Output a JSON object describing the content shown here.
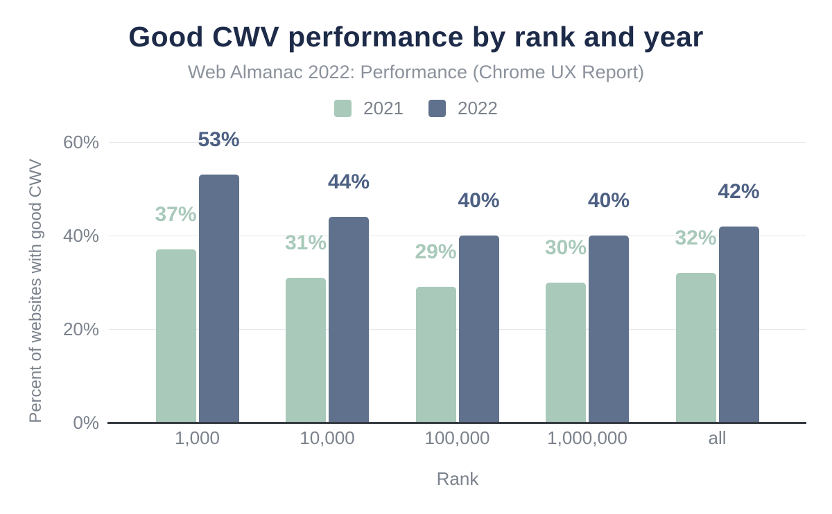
{
  "header": {
    "title": "Good CWV performance by rank and year",
    "subtitle": "Web Almanac 2022: Performance (Chrome UX Report)"
  },
  "legend": [
    {
      "label": "2021",
      "color": "#a9c9ba"
    },
    {
      "label": "2022",
      "color": "#5f718c"
    }
  ],
  "colors": {
    "title": "#1d2b49",
    "subtitle_text": "#8b929c",
    "axis_text": "#7b828c",
    "gridline": "#e6e7e9",
    "baseline": "#363b41",
    "series_2021": "#a9c9ba",
    "series_2021_label": "#a9c9ba",
    "series_2022": "#5f718c",
    "series_2022_label": "#4d6083"
  },
  "chart_data": {
    "type": "bar",
    "title": "Good CWV performance by rank and year",
    "subtitle": "Web Almanac 2022: Performance (Chrome UX Report)",
    "categories": [
      "1,000",
      "10,000",
      "100,000",
      "1,000,000",
      "all"
    ],
    "series": [
      {
        "name": "2021",
        "color": "#a9c9ba",
        "label_color": "#a9c9ba",
        "values": [
          37,
          31,
          29,
          30,
          32
        ],
        "labels": [
          "37%",
          "31%",
          "29%",
          "30%",
          "32%"
        ]
      },
      {
        "name": "2022",
        "color": "#5f718c",
        "label_color": "#4d6083",
        "values": [
          53,
          44,
          40,
          40,
          42
        ],
        "labels": [
          "53%",
          "44%",
          "40%",
          "40%",
          "42%"
        ]
      }
    ],
    "xlabel": "Rank",
    "ylabel": "Percent of websites with good CWV",
    "ylim": [
      0,
      60
    ],
    "yticks": [
      {
        "value": 0,
        "label": "0%"
      },
      {
        "value": 20,
        "label": "20%"
      },
      {
        "value": 40,
        "label": "40%"
      },
      {
        "value": 60,
        "label": "60%"
      }
    ],
    "grid": "horizontal",
    "legend_position": "top",
    "value_labels": "above-bars"
  }
}
